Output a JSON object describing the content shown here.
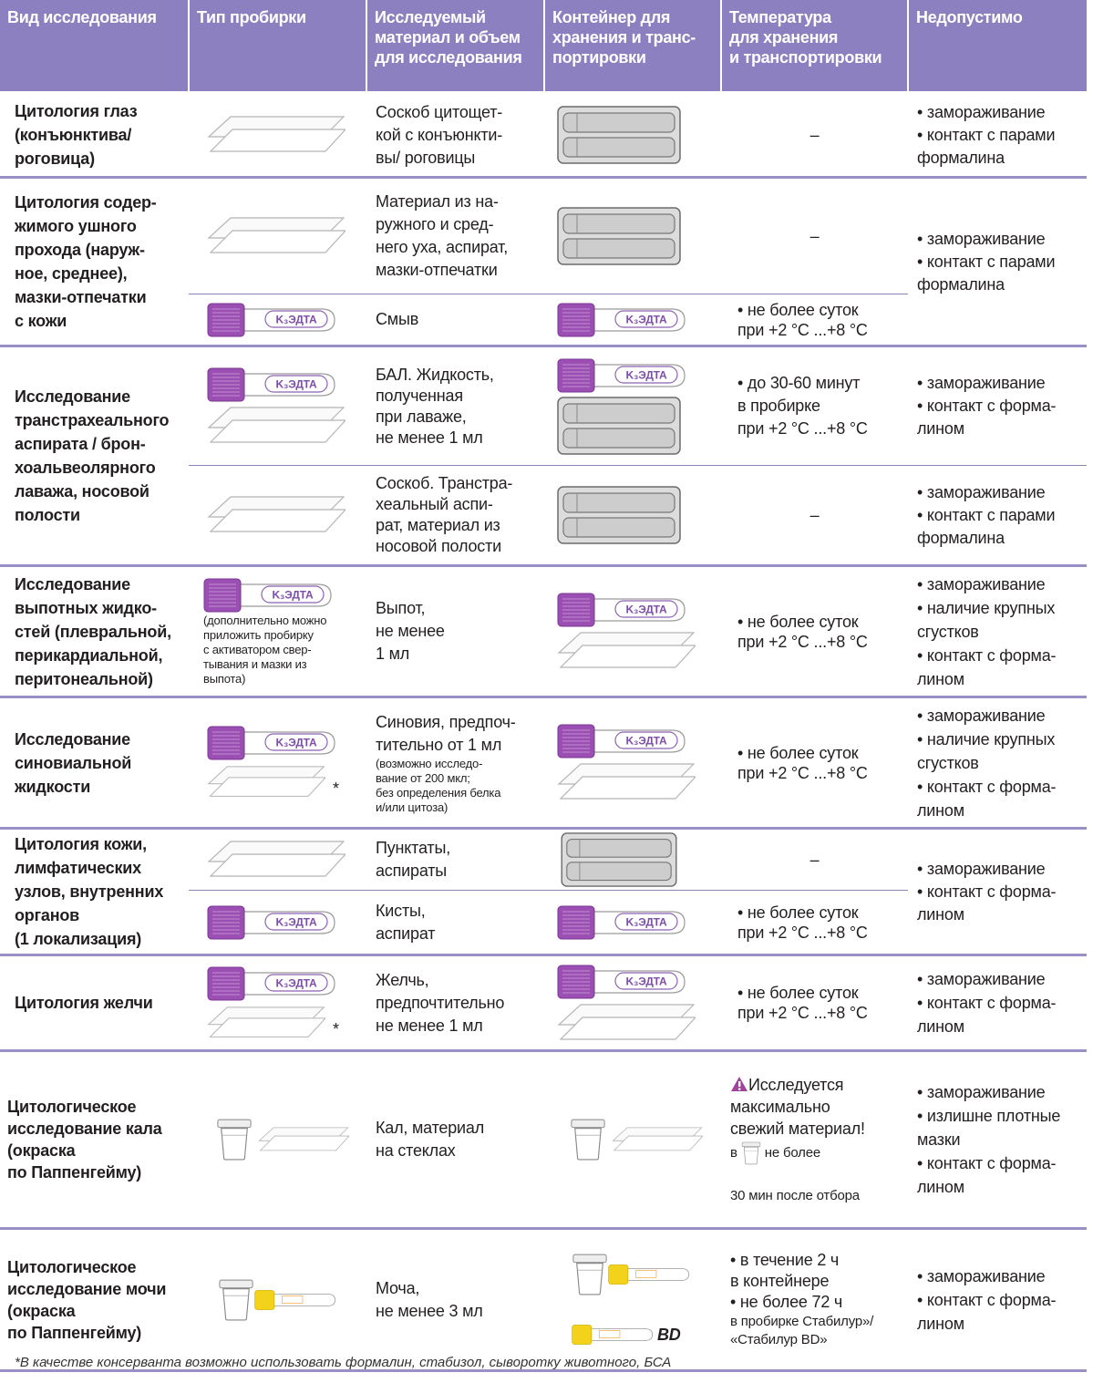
{
  "header": [
    "Вид исследования",
    "Тип пробирки",
    "Исследуемый\nматериал и объем\nдля исследования",
    "Контейнер для\nхранения и транс-\nпортировки",
    "Температура\nдля хранения\nи транспортировки",
    "Недопустимо"
  ],
  "tube_label": "K₃ЭДТА",
  "asterisk": "*",
  "rows": [
    {
      "name": "Цитология глаз\n(конъюнктива/\nроговица)",
      "material": "Соскоб цитощет-\nкой с конъюнкти-\nвы/ роговицы",
      "temperature": "–",
      "forbidden": "• замораживание\n• контакт с парами\nформалина"
    },
    {
      "name": "Цитология содер-\nжимого ушного\nпрохода (наруж-\nное, среднее),\nмазки-отпечатки\nс кожи",
      "parts": [
        {
          "material": "Материал из на-\nружного и сред-\nнего уха, аспират,\nмазки-отпечатки",
          "temperature": "–"
        },
        {
          "material": "Смыв",
          "temperature": "• не более суток\nпри +2 °С ...+8 °С"
        }
      ],
      "forbidden": "• замораживание\n• контакт с парами\nформалина"
    },
    {
      "name": "Исследование\nтранстрахеального\nаспирата / брон-\nхоальвеолярного\nлаважа, носовой\nполости",
      "parts": [
        {
          "material": "БАЛ. Жидкость,\nполученная\nпри лаваже,\nне менее 1 мл",
          "temperature": "• до 30-60 минут\nв пробирке\nпри +2 °С ...+8 °С",
          "forbidden": "• замораживание\n• контакт с форма-\nлином"
        },
        {
          "material": "Соскоб. Транстра-\nхеальный аспи-\nрат, материал из\nносовой полости",
          "temperature": "–",
          "forbidden": "• замораживание\n• контакт с парами\nформалина"
        }
      ]
    },
    {
      "name": "Исследование\nвыпотных жидко-\nстей (плевральной,\nперикардиальной,\nперитонеальной)",
      "tube_note": "(дополнительно можно\nприложить пробирку\nс активатором свер-\nтывания и мазки из\nвыпота)",
      "material": "Выпот,\nне менее\n1 мл",
      "temperature": "• не более суток\nпри +2 °С ...+8 °С",
      "forbidden": "• замораживание\n• наличие крупных\nсгустков\n• контакт с форма-\nлином"
    },
    {
      "name": "Исследование\nсиновиальной\nжидкости",
      "material": "Синовия, предпоч-\nтительно от 1 мл",
      "material_note": "(возможно исследо-\nвание от 200 мкл;\nбез определения белка\nи/или цитоза)",
      "temperature": "• не более суток\nпри +2 °С ...+8 °С",
      "forbidden": "• замораживание\n• наличие крупных\nсгустков\n• контакт с форма-\nлином"
    },
    {
      "name": "Цитология кожи,\nлимфатических\nузлов, внутренних\nорганов\n(1 локализация)",
      "parts": [
        {
          "material": "Пунктаты,\nаспираты",
          "temperature": "–"
        },
        {
          "material": "Кисты,\nаспират",
          "temperature": "• не более суток\nпри +2 °С ...+8 °С"
        }
      ],
      "forbidden": "• замораживание\n• контакт с форма-\nлином"
    },
    {
      "name": "Цитология желчи",
      "material": "Желчь,\nпредпочтительно\nне менее 1 мл",
      "temperature": "• не более суток\nпри +2 °С ...+8 °С",
      "forbidden": "• замораживание\n• контакт с форма-\nлином"
    },
    {
      "name": "Цитологическое\nисследование кала\n(окраска\nпо Паппенгейму)",
      "material": "Кал, материал\nна стеклах",
      "temperature": {
        "warning": "Исследуется\nмаксимально\nсвежий материал!",
        "prefix": "в",
        "limit": "не более",
        "detail": "30 мин после отбора"
      },
      "forbidden": "• замораживание\n• излишне плотные\nмазки\n• контакт с форма-\nлином"
    },
    {
      "name": "Цитологическое\nисследование мочи\n(окраска\nпо Паппенгейму)",
      "material": "Моча,\nне менее 3 мл",
      "container_label": "BD",
      "temperature": {
        "main": "• в течение 2 ч\nв контейнере\n• не более 72 ч",
        "detail": "в пробирке Стабилур»/\n«Стабилур BD»"
      },
      "forbidden": "• замораживание\n• контакт с форма-\nлином"
    }
  ],
  "footnote": "*В качестве консерванта возможно использовать формалин, стабизол, сыворотку животного, БСА"
}
